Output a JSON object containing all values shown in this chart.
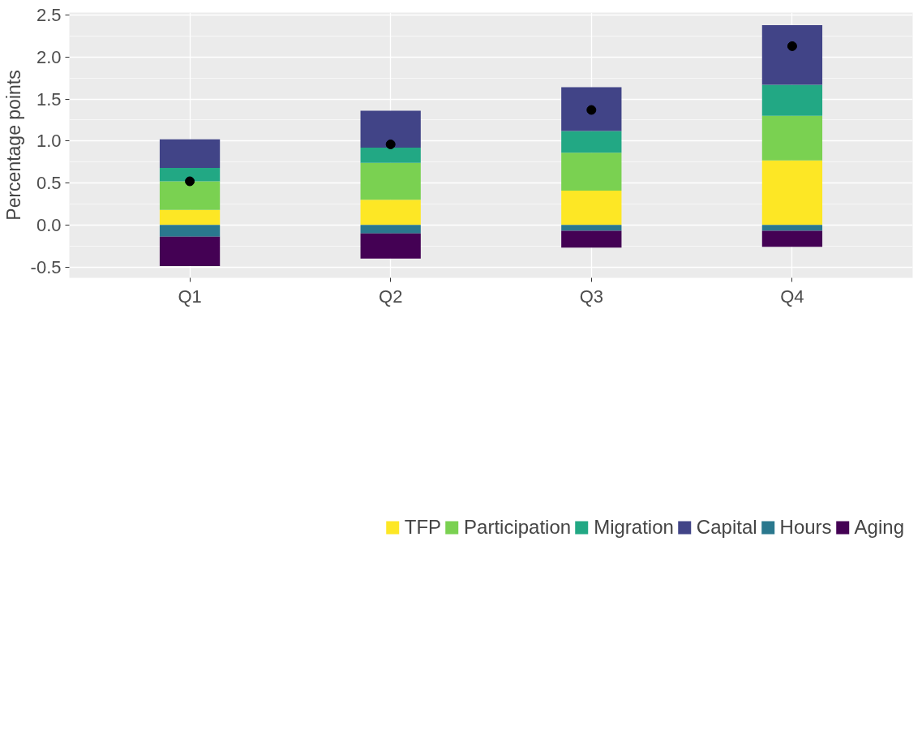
{
  "chart_data": {
    "type": "bar",
    "stacked": true,
    "ylabel": "Percentage points",
    "categories": [
      "Q1",
      "Q2",
      "Q3",
      "Q4"
    ],
    "series": [
      {
        "name": "TFP",
        "color": "#fde725",
        "values": [
          0.18,
          0.3,
          0.41,
          0.77
        ]
      },
      {
        "name": "Participation",
        "color": "#7ad151",
        "values": [
          0.34,
          0.44,
          0.45,
          0.53
        ]
      },
      {
        "name": "Migration",
        "color": "#22a884",
        "values": [
          0.16,
          0.18,
          0.26,
          0.37
        ]
      },
      {
        "name": "Capital",
        "color": "#414487",
        "values": [
          0.34,
          0.44,
          0.52,
          0.71
        ]
      },
      {
        "name": "Hours",
        "color": "#2a788e",
        "values": [
          -0.14,
          -0.1,
          -0.07,
          -0.07
        ]
      },
      {
        "name": "Aging",
        "color": "#440154",
        "values": [
          -0.35,
          -0.3,
          -0.2,
          -0.19
        ]
      },
      {
        "type": "scatter",
        "color": "#000000",
        "x": [
          "Q1",
          "Q2",
          "Q3",
          "Q4"
        ],
        "values": [
          0.52,
          0.96,
          1.37,
          2.13
        ]
      }
    ],
    "ylim": [
      -0.63,
      2.53
    ],
    "yticks": [
      {
        "value": -0.5,
        "label": "-0.5"
      },
      {
        "value": 0,
        "label": "0.0"
      },
      {
        "value": 0.5,
        "label": "0.5"
      },
      {
        "value": 1,
        "label": "1.0"
      },
      {
        "value": 1.5,
        "label": "1.5"
      },
      {
        "value": 2,
        "label": "2.0"
      },
      {
        "value": 2.5,
        "label": "2.5"
      }
    ],
    "grid": true,
    "legend": "bottom",
    "marker": "circle"
  }
}
